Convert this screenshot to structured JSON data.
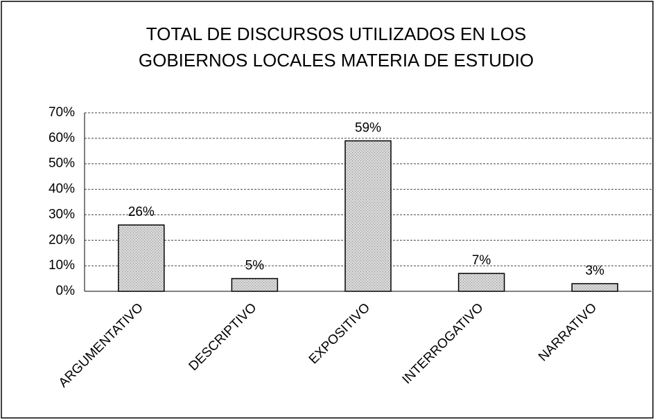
{
  "chart_data": {
    "type": "bar",
    "title": "TOTAL DE DISCURSOS UTILIZADOS EN LOS GOBIERNOS LOCALES MATERIA DE ESTUDIO",
    "categories": [
      "ARGUMENTATIVO",
      "DESCRIPTIVO",
      "EXPOSITIVO",
      "INTERROGATIVO",
      "NARRATIVO"
    ],
    "values": [
      26,
      5,
      59,
      7,
      3
    ],
    "value_labels": [
      "26%",
      "5%",
      "59%",
      "7%",
      "3%"
    ],
    "color": "#c4c4c4",
    "ylim": [
      0,
      70
    ],
    "yticks": [
      {
        "value": 0,
        "label": "0%"
      },
      {
        "value": 10,
        "label": "10%"
      },
      {
        "value": 20,
        "label": "20%"
      },
      {
        "value": 30,
        "label": "30%"
      },
      {
        "value": 40,
        "label": "40%"
      },
      {
        "value": 50,
        "label": "50%"
      },
      {
        "value": 60,
        "label": "60%"
      },
      {
        "value": 70,
        "label": "70%"
      }
    ],
    "grid": true
  }
}
